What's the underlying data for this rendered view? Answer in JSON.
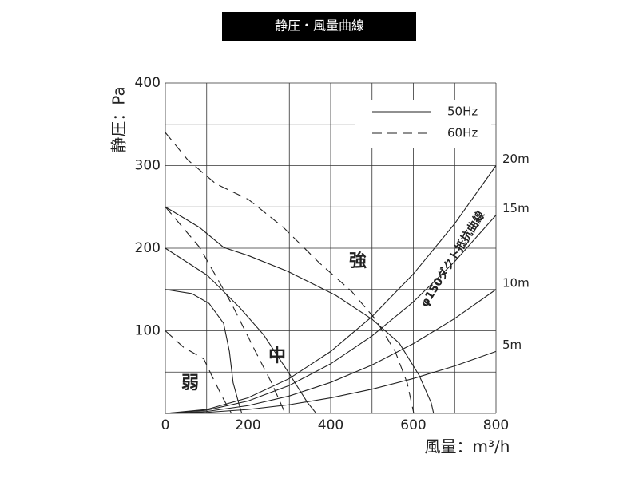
{
  "chart_data": {
    "type": "line",
    "title": "静圧・風量曲線",
    "x_label": "風量：m³/h",
    "y_label": "静圧：Pa",
    "xlim": [
      0,
      800
    ],
    "ylim": [
      0,
      400
    ],
    "xticks": [
      0,
      200,
      400,
      600,
      800
    ],
    "yticks": [
      100,
      200,
      300,
      400
    ],
    "xgrid": [
      0,
      100,
      200,
      300,
      400,
      500,
      600,
      700,
      800
    ],
    "ygrid": [
      0,
      50,
      100,
      150,
      200,
      250,
      300,
      350,
      400
    ],
    "series": [
      {
        "name": "50Hz",
        "color": "#222222",
        "dashed": false,
        "curves": [
          {
            "x": [
              0,
              83,
              141,
              201,
              296,
              412,
              500,
              566,
              614,
              643,
              649
            ],
            "y": [
              250,
              225,
              201,
              191,
              172,
              143,
              114,
              85,
              46,
              13,
              0
            ]
          },
          {
            "x": [
              0,
              102,
              180,
              238,
              296,
              344,
              365
            ],
            "y": [
              200,
              167,
              128,
              95,
              51,
              13,
              0
            ]
          },
          {
            "x": [
              0,
              64,
              106,
              141,
              155,
              164,
              180,
              185
            ],
            "y": [
              150,
              145,
              133,
              109,
              75,
              37,
              8,
              0
            ]
          }
        ]
      },
      {
        "name": "60Hz",
        "color": "#222222",
        "dashed": true,
        "curves": [
          {
            "x": [
              0,
              54,
              122,
              201,
              286,
              373,
              450,
              508,
              556,
              585,
              601
            ],
            "y": [
              340,
              307,
              278,
              259,
              225,
              182,
              148,
              114,
              75,
              37,
              0
            ]
          },
          {
            "x": [
              0,
              83,
              160,
              218,
              257,
              290
            ],
            "y": [
              250,
              201,
              133,
              75,
              37,
              0
            ]
          },
          {
            "x": [
              0,
              44,
              93,
              112,
              141,
              160
            ],
            "y": [
              100,
              80,
              66,
              46,
              17,
              0
            ]
          }
        ]
      }
    ],
    "annotations": [
      "強",
      "中",
      "弱"
    ],
    "resistance": {
      "title": "φ150ダクト抵抗曲線",
      "curves": [
        {
          "label": "20m",
          "x": [
            0,
            100,
            200,
            300,
            400,
            500,
            600,
            700,
            800
          ],
          "y": [
            0,
            4.7,
            18.8,
            42.2,
            75,
            117.2,
            168.8,
            229.7,
            300
          ]
        },
        {
          "label": "15m",
          "x": [
            0,
            100,
            200,
            300,
            400,
            500,
            600,
            700,
            800
          ],
          "y": [
            0,
            3.8,
            15,
            33.8,
            60,
            93.8,
            135,
            183.8,
            240
          ]
        },
        {
          "label": "10m",
          "x": [
            0,
            100,
            200,
            300,
            400,
            500,
            600,
            700,
            800
          ],
          "y": [
            0,
            2.3,
            9.4,
            21.1,
            37.5,
            58.6,
            84.4,
            114.8,
            150
          ]
        },
        {
          "label": "5m",
          "x": [
            0,
            100,
            200,
            300,
            400,
            500,
            600,
            700,
            800
          ],
          "y": [
            0,
            1.2,
            4.7,
            10.5,
            18.8,
            29.3,
            42.2,
            57.4,
            75
          ]
        }
      ]
    }
  }
}
